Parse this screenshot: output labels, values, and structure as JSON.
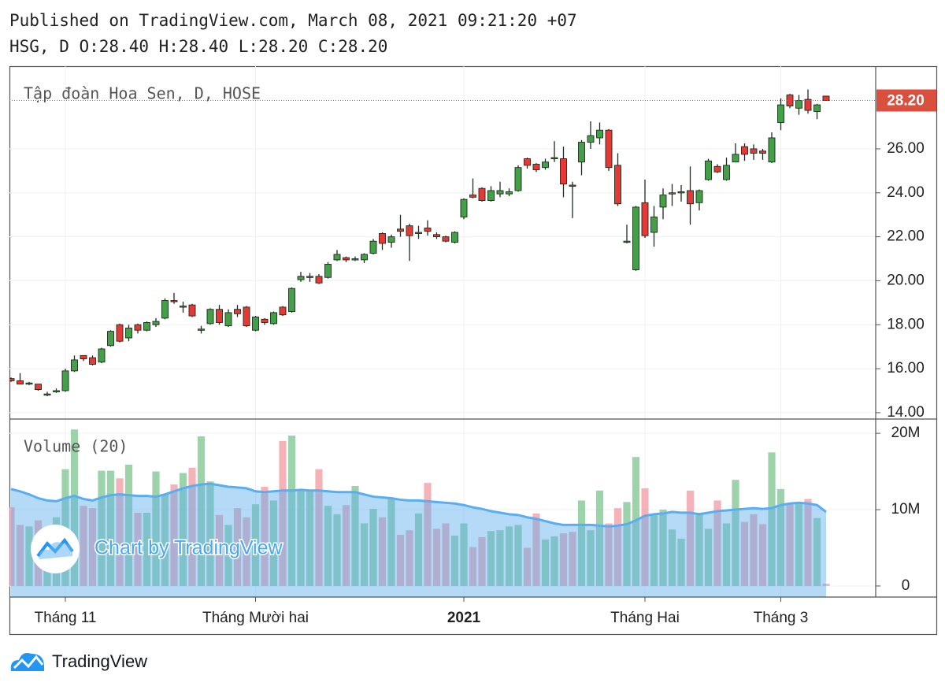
{
  "header": {
    "published": "Published on TradingView.com, March 08, 2021 09:21:20 +07",
    "ohlc": "HSG, D O:28.40 H:28.40 L:28.20 C:28.20"
  },
  "watermark": "Chart by TradingView",
  "footer": "TradingView",
  "chart_data": [
    {
      "type": "candlestick",
      "title": "Tập đoàn Hoa Sen, D, HOSE",
      "categories": [
        null,
        null,
        null,
        null,
        null,
        null,
        "Tháng 11",
        null,
        null,
        null,
        null,
        null,
        null,
        null,
        null,
        null,
        null,
        null,
        null,
        null,
        null,
        null,
        null,
        null,
        null,
        null,
        null,
        "Tháng Mười hai",
        null,
        null,
        null,
        null,
        null,
        null,
        null,
        null,
        null,
        null,
        null,
        null,
        null,
        null,
        null,
        null,
        null,
        null,
        null,
        null,
        null,
        null,
        "2021",
        null,
        null,
        null,
        null,
        null,
        null,
        null,
        null,
        null,
        null,
        null,
        null,
        null,
        null,
        null,
        null,
        null,
        null,
        null,
        "Tháng Hai",
        null,
        null,
        null,
        null,
        null,
        null,
        null,
        null,
        null,
        null,
        null,
        null,
        null,
        null,
        "Tháng 3",
        null,
        null,
        null,
        null,
        null
      ],
      "open": [
        15.55,
        15.45,
        15.3,
        15.3,
        14.8,
        14.95,
        15.0,
        15.9,
        16.6,
        16.5,
        16.3,
        17.05,
        18.0,
        17.4,
        18.0,
        17.75,
        18.0,
        18.3,
        19.1,
        18.8,
        18.9,
        17.75,
        18.05,
        18.7,
        17.95,
        18.7,
        18.8,
        17.75,
        18.25,
        18.05,
        18.8,
        18.6,
        20.05,
        20.15,
        20.2,
        20.15,
        20.95,
        21.05,
        20.95,
        20.95,
        21.25,
        22.15,
        21.75,
        22.35,
        22.5,
        22.15,
        22.4,
        22.1,
        22.0,
        21.75,
        22.9,
        23.9,
        24.2,
        23.65,
        23.95,
        23.95,
        24.1,
        25.55,
        25.3,
        25.15,
        25.55,
        25.55,
        24.35,
        25.4,
        26.3,
        26.5,
        26.85,
        25.25,
        21.75,
        20.5,
        23.55,
        22.2,
        23.35,
        23.95,
        24.0,
        24.1,
        23.55,
        24.6,
        25.2,
        24.6,
        25.4,
        26.1,
        26.0,
        25.9,
        25.4,
        27.2,
        28.45,
        27.85,
        28.25,
        27.7,
        28.4
      ],
      "high": [
        15.6,
        15.8,
        15.4,
        15.3,
        14.95,
        15.1,
        16.0,
        16.6,
        16.6,
        16.6,
        16.95,
        17.75,
        18.05,
        18.0,
        18.05,
        18.15,
        18.3,
        19.2,
        19.45,
        19.05,
        18.95,
        17.95,
        18.75,
        18.9,
        18.7,
        18.9,
        18.85,
        18.4,
        18.3,
        18.6,
        18.85,
        19.7,
        20.4,
        20.35,
        20.3,
        20.85,
        21.4,
        21.1,
        21.1,
        21.25,
        21.9,
        22.2,
        22.1,
        23.0,
        22.6,
        22.5,
        22.75,
        22.2,
        22.05,
        22.25,
        23.75,
        24.65,
        24.25,
        24.3,
        24.5,
        24.2,
        25.25,
        25.6,
        25.35,
        25.55,
        26.35,
        26.1,
        24.5,
        26.4,
        27.25,
        27.2,
        26.9,
        25.8,
        22.55,
        23.4,
        24.6,
        23.4,
        24.2,
        24.4,
        24.35,
        25.2,
        24.15,
        25.55,
        25.3,
        25.6,
        26.25,
        26.25,
        26.2,
        26.0,
        26.75,
        28.3,
        28.5,
        28.45,
        28.7,
        28.05,
        28.4
      ],
      "low": [
        15.4,
        15.3,
        15.25,
        15.0,
        14.75,
        14.9,
        14.95,
        15.85,
        16.35,
        16.15,
        16.25,
        17.0,
        17.2,
        17.25,
        17.6,
        17.7,
        17.9,
        18.25,
        18.95,
        18.55,
        18.35,
        17.6,
        18.0,
        18.0,
        17.9,
        18.35,
        17.9,
        17.7,
        18.0,
        18.0,
        18.4,
        18.55,
        19.95,
        19.95,
        19.85,
        20.1,
        20.9,
        20.85,
        20.9,
        20.8,
        21.2,
        21.4,
        21.5,
        22.0,
        20.9,
        21.9,
        22.05,
        21.9,
        21.75,
        21.7,
        22.8,
        23.75,
        23.6,
        23.6,
        23.8,
        23.85,
        24.05,
        25.1,
        24.95,
        25.05,
        25.4,
        23.8,
        22.85,
        24.8,
        26.0,
        26.2,
        25.0,
        23.4,
        21.7,
        20.45,
        21.95,
        21.55,
        22.8,
        23.4,
        23.6,
        22.55,
        23.2,
        24.55,
        24.9,
        24.55,
        25.4,
        25.45,
        25.5,
        25.5,
        25.35,
        26.85,
        27.85,
        27.55,
        27.6,
        27.35,
        28.2
      ],
      "close": [
        15.45,
        15.3,
        15.35,
        15.05,
        14.85,
        15.0,
        15.9,
        16.4,
        16.45,
        16.2,
        16.9,
        17.7,
        17.25,
        17.85,
        17.75,
        18.1,
        18.15,
        19.1,
        19.05,
        18.85,
        18.4,
        17.8,
        18.7,
        18.1,
        18.55,
        18.5,
        17.95,
        18.35,
        18.1,
        18.55,
        18.45,
        19.65,
        20.2,
        20.2,
        19.9,
        20.75,
        21.2,
        20.95,
        21.0,
        21.2,
        21.8,
        21.7,
        22.0,
        22.25,
        22.05,
        22.2,
        22.25,
        22.0,
        21.8,
        22.2,
        23.7,
        23.8,
        23.65,
        24.1,
        24.1,
        24.05,
        25.15,
        25.25,
        25.05,
        25.4,
        25.6,
        24.4,
        24.3,
        26.3,
        26.6,
        26.85,
        25.15,
        23.5,
        21.8,
        23.35,
        22.05,
        22.9,
        23.9,
        24.0,
        24.05,
        23.5,
        24.1,
        25.45,
        24.95,
        25.25,
        25.75,
        25.75,
        25.8,
        25.8,
        26.5,
        28.0,
        27.95,
        28.2,
        27.75,
        28.0,
        28.2
      ],
      "up_color": "#43a047",
      "down_color": "#e53935",
      "last_price": {
        "value": 28.2,
        "label": "28.20"
      },
      "last_price_color": "#d9503f",
      "ylim": [
        13.71,
        29.76
      ],
      "yticks": [
        {
          "value": 14,
          "label": "14.00"
        },
        {
          "value": 16,
          "label": "16.00"
        },
        {
          "value": 18,
          "label": "18.00"
        },
        {
          "value": 20,
          "label": "20.00"
        },
        {
          "value": 22,
          "label": "22.00"
        },
        {
          "value": 24,
          "label": "24.00"
        },
        {
          "value": 26,
          "label": "26.00"
        }
      ],
      "grid": true
    },
    {
      "type": "bar",
      "title": "Volume (20)",
      "values": [
        10300000,
        8000000,
        7800000,
        8600000,
        7500000,
        9000000,
        15300000,
        20500000,
        10500000,
        10200000,
        15100000,
        15100000,
        14100000,
        15900000,
        9600000,
        9600000,
        15000000,
        12000000,
        13300000,
        14800000,
        15500000,
        19600000,
        13700000,
        9300000,
        8000000,
        10200000,
        9000000,
        10700000,
        13000000,
        11200000,
        19000000,
        19700000,
        12500000,
        12400000,
        15300000,
        10500000,
        9400000,
        10600000,
        13100000,
        8200000,
        10100000,
        9000000,
        11500000,
        6700000,
        7300000,
        9500000,
        13500000,
        7500000,
        8200000,
        6600000,
        8200000,
        5100000,
        6400000,
        7200000,
        7300000,
        7800000,
        8000000,
        5000000,
        9500000,
        6100000,
        6500000,
        6900000,
        7100000,
        11200000,
        7300000,
        12500000,
        8200000,
        10200000,
        11000000,
        16900000,
        12800000,
        9400000,
        10000000,
        7400000,
        6200000,
        12500000,
        9600000,
        7500000,
        11200000,
        8200000,
        13900000,
        8400000,
        9400000,
        8100000,
        17500000,
        12700000,
        10800000,
        11000000,
        11400000,
        8900000,
        300000
      ],
      "ma_values": [
        12700000,
        12400000,
        12000000,
        11500000,
        11200000,
        11100000,
        11500000,
        11800000,
        11400000,
        11200000,
        11600000,
        11900000,
        12000000,
        11900000,
        11800000,
        11800000,
        11700000,
        12000000,
        12400000,
        12800000,
        13100000,
        13300000,
        13400000,
        13200000,
        13000000,
        12900000,
        12800000,
        12400000,
        12300000,
        12400000,
        12500000,
        12500000,
        12600000,
        12500000,
        12500000,
        12400000,
        12300000,
        12300000,
        12300000,
        12000000,
        11700000,
        11600000,
        11500000,
        11300000,
        11200000,
        11200000,
        11100000,
        11000000,
        10900000,
        10800000,
        10600000,
        10300000,
        10100000,
        9800000,
        9600000,
        9400000,
        9300000,
        9000000,
        8800000,
        8500000,
        8200000,
        8000000,
        8000000,
        8000000,
        8000000,
        7900000,
        7800000,
        7900000,
        8100000,
        8600000,
        9200000,
        9400000,
        9500000,
        9700000,
        9600000,
        9600000,
        9400000,
        9600000,
        9800000,
        9900000,
        10000000,
        10100000,
        10200000,
        10100000,
        10200000,
        10600000,
        10800000,
        10900000,
        10800000,
        10600000,
        9700000
      ],
      "up_color": "#7cc48e",
      "down_color": "#f29aa2",
      "ma_color": "#5aaef0",
      "ylim": [
        -1450000,
        21870000
      ],
      "yticks": [
        0,
        {
          "value": 10000000,
          "label": "10M"
        },
        {
          "value": 20000000,
          "label": "20M"
        }
      ],
      "grid": true
    }
  ]
}
